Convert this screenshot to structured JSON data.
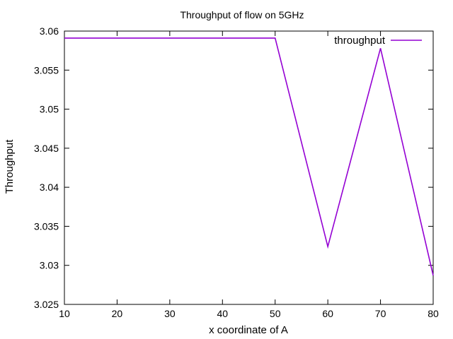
{
  "chart_data": {
    "type": "line",
    "title": "Throughput of flow on 5GHz",
    "xlabel": "x coordinate of A",
    "ylabel": "Throughput",
    "xlim": [
      10,
      80
    ],
    "ylim": [
      3.025,
      3.06
    ],
    "xticks": [
      10,
      20,
      30,
      40,
      50,
      60,
      70,
      80
    ],
    "yticks": [
      3.025,
      3.03,
      3.035,
      3.04,
      3.045,
      3.05,
      3.055,
      3.06
    ],
    "ytick_labels": [
      "3.025",
      "3.03",
      "3.035",
      "3.04",
      "3.045",
      "3.05",
      "3.055",
      "3.06"
    ],
    "grid": false,
    "legend_position": "top-right",
    "series": [
      {
        "name": "throughput",
        "color": "#9400d3",
        "x": [
          10,
          20,
          30,
          40,
          50,
          60,
          70,
          80
        ],
        "y": [
          3.0591,
          3.0591,
          3.0591,
          3.0591,
          3.0591,
          3.0324,
          3.0578,
          3.0287
        ]
      }
    ]
  }
}
